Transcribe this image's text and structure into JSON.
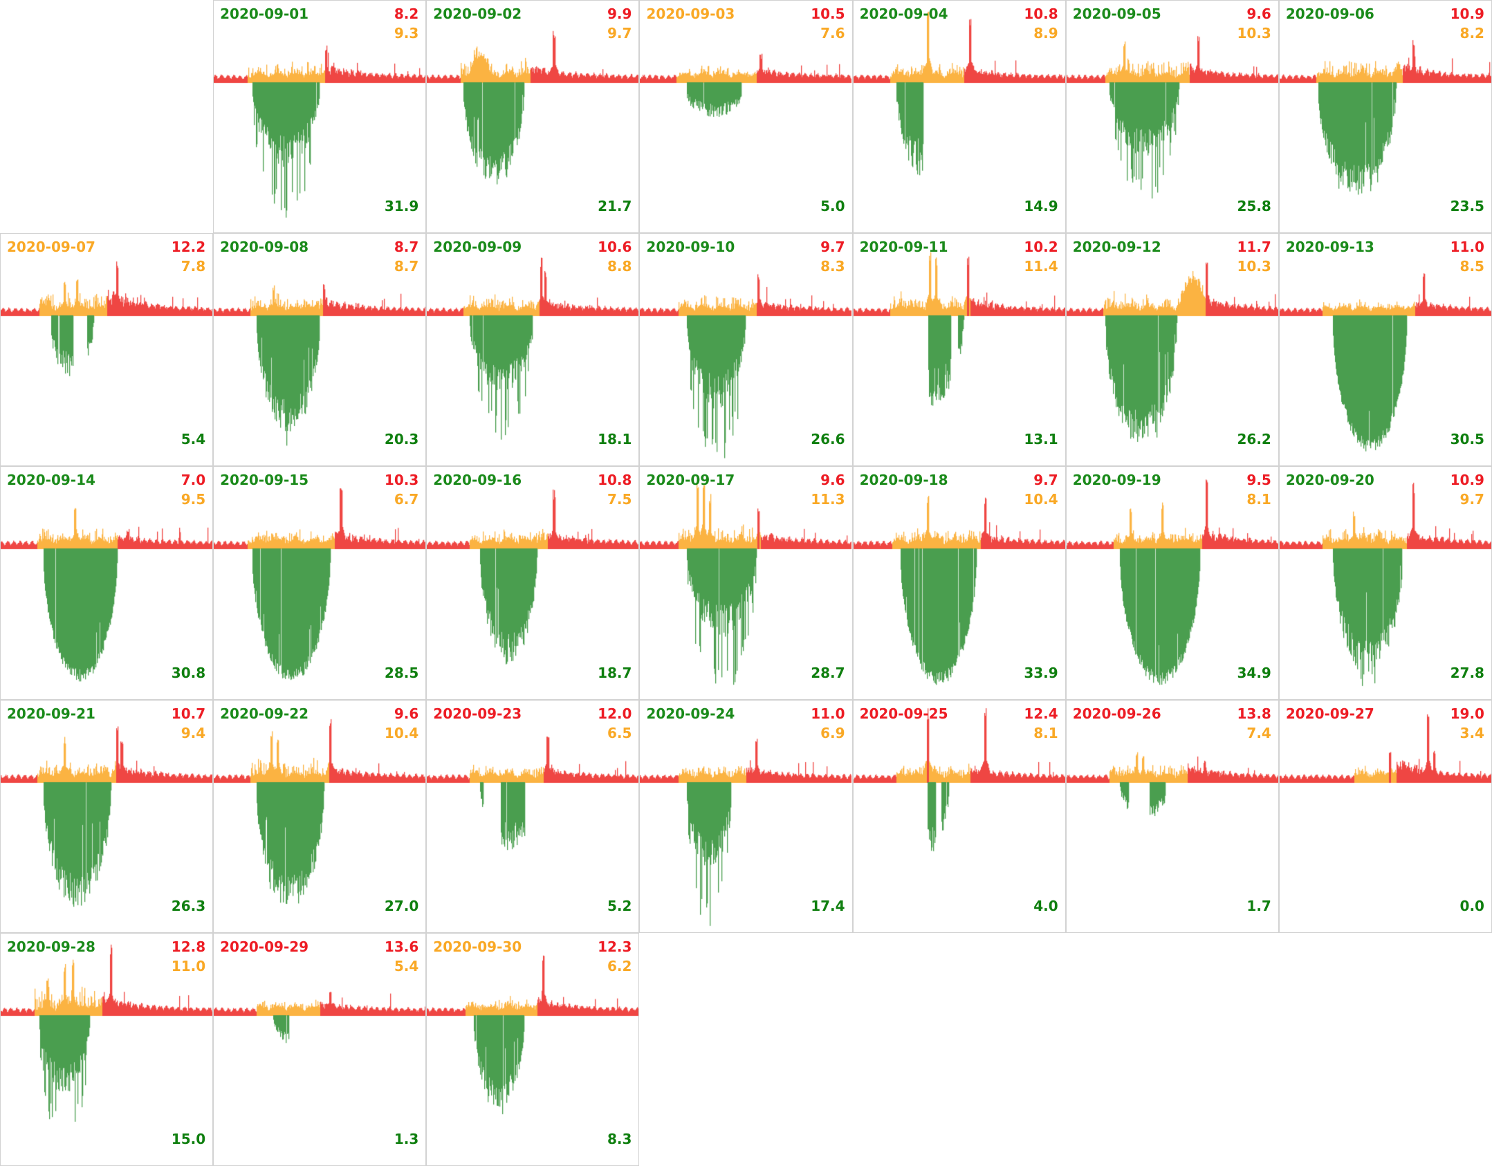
{
  "page": {
    "background": "#ffffff"
  },
  "colors": {
    "chart_red": "#ef4643",
    "chart_orange": "#fbb342",
    "chart_green": "#4a9e4f",
    "text_red": "#ed1c24",
    "text_orange": "#f9a825",
    "text_green_date": "#1a8a1a",
    "text_green_value": "#0f7f0f",
    "date_orange": "#f9a825",
    "date_red": "#ed1c24",
    "border": "#d2d2d2"
  },
  "chart_data": {
    "type": "area",
    "layout": "calendar-small-multiples",
    "month": "2020-09",
    "columns": 7,
    "rows": 5,
    "first_day_column": 2,
    "value_legend": {
      "top_right_line1_color": "red",
      "top_right_line2_color": "orange",
      "bottom_right_color": "green"
    },
    "days": [
      {
        "date": "2020-09-01",
        "date_color": "green",
        "value_red": "8.2",
        "value_orange": "9.3",
        "value_green": "31.9",
        "seed": 1,
        "shape": {
          "g": [
            0.18,
            0.5
          ],
          "d": 185,
          "gs": "spiky",
          "o": [
            0.16,
            0.53
          ],
          "n": 0.5,
          "sp": [
            [
              0.53,
              50,
              "r"
            ]
          ],
          "tail": 12
        }
      },
      {
        "date": "2020-09-02",
        "date_color": "green",
        "value_red": "9.9",
        "value_orange": "9.7",
        "value_green": "21.7",
        "seed": 2,
        "shape": {
          "g": [
            0.17,
            0.46
          ],
          "d": 150,
          "gs": "ragged",
          "o": [
            0.16,
            0.49
          ],
          "n": 0.6,
          "m": [
            0.2,
            0.3,
            35
          ],
          "sp": [
            [
              0.6,
              68,
              "r"
            ]
          ],
          "tail": 12
        }
      },
      {
        "date": "2020-09-03",
        "date_color": "orange",
        "value_red": "10.5",
        "value_orange": "7.6",
        "value_green": "5.0",
        "seed": 3,
        "shape": {
          "g": [
            0.2,
            0.5
          ],
          "d": 55,
          "gs": "patchy",
          "o": [
            0.17,
            0.55
          ],
          "n": 0.35,
          "sp": [
            [
              0.57,
              38,
              "r"
            ]
          ],
          "tail": 10
        }
      },
      {
        "date": "2020-09-04",
        "date_color": "green",
        "value_red": "10.8",
        "value_orange": "8.9",
        "value_green": "14.9",
        "seed": 4,
        "shape": {
          "g": [
            0.2,
            0.48
          ],
          "d": 150,
          "gs": "patchy",
          "o": [
            0.17,
            0.52
          ],
          "n": 0.5,
          "sp": [
            [
              0.35,
              100,
              "o"
            ],
            [
              0.55,
              88,
              "r"
            ]
          ],
          "tail": 10
        }
      },
      {
        "date": "2020-09-05",
        "date_color": "green",
        "value_red": "9.6",
        "value_orange": "10.3",
        "value_green": "25.8",
        "seed": 5,
        "shape": {
          "g": [
            0.2,
            0.53
          ],
          "d": 160,
          "gs": "spiky",
          "o": [
            0.18,
            0.58
          ],
          "n": 0.6,
          "sp": [
            [
              0.27,
              55,
              "o"
            ],
            [
              0.62,
              62,
              "r"
            ]
          ],
          "tail": 12
        }
      },
      {
        "date": "2020-09-06",
        "date_color": "green",
        "value_red": "10.9",
        "value_orange": "8.2",
        "value_green": "23.5",
        "seed": 6,
        "shape": {
          "g": [
            0.18,
            0.55
          ],
          "d": 165,
          "gs": "ragged",
          "o": [
            0.17,
            0.58
          ],
          "n": 0.55,
          "sp": [
            [
              0.63,
              58,
              "r"
            ]
          ],
          "tail": 14
        }
      },
      {
        "date": "2020-09-07",
        "date_color": "orange",
        "value_red": "12.2",
        "value_orange": "7.8",
        "value_green": "5.4",
        "seed": 7,
        "shape": {
          "g": [
            0.22,
            0.44
          ],
          "d": 95,
          "gs": "patchy",
          "o": [
            0.18,
            0.5
          ],
          "n": 0.7,
          "sp": [
            [
              0.3,
              48,
              "o"
            ],
            [
              0.36,
              52,
              "o"
            ],
            [
              0.55,
              72,
              "r"
            ]
          ],
          "tail": 22
        }
      },
      {
        "date": "2020-09-08",
        "date_color": "green",
        "value_red": "8.7",
        "value_orange": "8.7",
        "value_green": "20.3",
        "seed": 8,
        "shape": {
          "g": [
            0.2,
            0.5
          ],
          "d": 170,
          "gs": "ragged",
          "o": [
            0.17,
            0.52
          ],
          "n": 0.5,
          "sp": [
            [
              0.28,
              40,
              "o"
            ],
            [
              0.52,
              42,
              "r"
            ]
          ],
          "tail": 12
        }
      },
      {
        "date": "2020-09-09",
        "date_color": "green",
        "value_red": "10.6",
        "value_orange": "8.8",
        "value_green": "18.1",
        "seed": 9,
        "shape": {
          "g": [
            0.2,
            0.5
          ],
          "d": 170,
          "gs": "spiky",
          "o": [
            0.17,
            0.53
          ],
          "n": 0.5,
          "sp": [
            [
              0.54,
              78,
              "r"
            ],
            [
              0.56,
              60,
              "r"
            ]
          ],
          "tail": 12
        }
      },
      {
        "date": "2020-09-10",
        "date_color": "green",
        "value_red": "9.7",
        "value_orange": "8.3",
        "value_green": "26.6",
        "seed": 10,
        "shape": {
          "g": [
            0.22,
            0.5
          ],
          "d": 205,
          "gs": "spiky",
          "o": [
            0.18,
            0.55
          ],
          "n": 0.5,
          "sp": [
            [
              0.56,
              55,
              "r"
            ]
          ],
          "tail": 10
        }
      },
      {
        "date": "2020-09-11",
        "date_color": "green",
        "value_red": "10.2",
        "value_orange": "11.4",
        "value_green": "13.1",
        "seed": 11,
        "shape": {
          "g": [
            0.2,
            0.52
          ],
          "d": 140,
          "gs": "patchy",
          "o": [
            0.17,
            0.55
          ],
          "n": 0.6,
          "sp": [
            [
              0.36,
              85,
              "o"
            ],
            [
              0.39,
              78,
              "o"
            ],
            [
              0.54,
              78,
              "r"
            ]
          ],
          "tail": 12
        }
      },
      {
        "date": "2020-09-12",
        "date_color": "green",
        "value_red": "11.7",
        "value_orange": "10.3",
        "value_green": "26.2",
        "seed": 12,
        "shape": {
          "g": [
            0.18,
            0.52
          ],
          "d": 190,
          "gs": "ragged",
          "o": [
            0.17,
            0.66
          ],
          "n": 0.6,
          "m": [
            0.53,
            0.66,
            48
          ],
          "sp": [
            [
              0.66,
              78,
              "r"
            ]
          ],
          "tail": 14
        }
      },
      {
        "date": "2020-09-13",
        "date_color": "green",
        "value_red": "11.0",
        "value_orange": "8.5",
        "value_green": "30.5",
        "seed": 13,
        "shape": {
          "g": [
            0.25,
            0.6
          ],
          "d": 200,
          "gs": "solid",
          "o": [
            0.2,
            0.64
          ],
          "n": 0.3,
          "sp": [
            [
              0.68,
              58,
              "r"
            ]
          ],
          "tail": 10
        }
      },
      {
        "date": "2020-09-14",
        "date_color": "green",
        "value_red": "7.0",
        "value_orange": "9.5",
        "value_green": "30.8",
        "seed": 14,
        "shape": {
          "g": [
            0.2,
            0.55
          ],
          "d": 195,
          "gs": "solid",
          "o": [
            0.17,
            0.55
          ],
          "n": 0.5,
          "sp": [
            [
              0.35,
              58,
              "o"
            ],
            [
              0.6,
              26,
              "r"
            ]
          ],
          "tail": 8
        }
      },
      {
        "date": "2020-09-15",
        "date_color": "green",
        "value_red": "10.3",
        "value_orange": "6.7",
        "value_green": "28.5",
        "seed": 15,
        "shape": {
          "g": [
            0.18,
            0.55
          ],
          "d": 195,
          "gs": "solid",
          "o": [
            0.16,
            0.57
          ],
          "n": 0.45,
          "sp": [
            [
              0.6,
              92,
              "r"
            ]
          ],
          "tail": 12
        }
      },
      {
        "date": "2020-09-16",
        "date_color": "green",
        "value_red": "10.8",
        "value_orange": "7.5",
        "value_green": "18.7",
        "seed": 16,
        "shape": {
          "g": [
            0.25,
            0.52
          ],
          "d": 170,
          "gs": "ragged",
          "o": [
            0.2,
            0.57
          ],
          "n": 0.45,
          "sp": [
            [
              0.6,
              78,
              "r"
            ]
          ],
          "tail": 12
        }
      },
      {
        "date": "2020-09-17",
        "date_color": "green",
        "value_red": "9.6",
        "value_orange": "11.3",
        "value_green": "28.7",
        "seed": 17,
        "shape": {
          "g": [
            0.22,
            0.55
          ],
          "d": 195,
          "gs": "spiky",
          "o": [
            0.18,
            0.57
          ],
          "n": 0.6,
          "sp": [
            [
              0.27,
              88,
              "o"
            ],
            [
              0.3,
              98,
              "o"
            ],
            [
              0.33,
              72,
              "o"
            ],
            [
              0.56,
              55,
              "r"
            ]
          ],
          "tail": 12
        }
      },
      {
        "date": "2020-09-18",
        "date_color": "green",
        "value_red": "9.7",
        "value_orange": "10.4",
        "value_green": "33.9",
        "seed": 18,
        "shape": {
          "g": [
            0.22,
            0.58
          ],
          "d": 200,
          "gs": "solid",
          "o": [
            0.18,
            0.6
          ],
          "n": 0.5,
          "sp": [
            [
              0.35,
              72,
              "o"
            ],
            [
              0.62,
              70,
              "r"
            ]
          ],
          "tail": 10
        }
      },
      {
        "date": "2020-09-19",
        "date_color": "green",
        "value_red": "9.5",
        "value_orange": "8.1",
        "value_green": "34.9",
        "seed": 19,
        "shape": {
          "g": [
            0.25,
            0.63
          ],
          "d": 200,
          "gs": "solid",
          "o": [
            0.22,
            0.64
          ],
          "n": 0.45,
          "sp": [
            [
              0.3,
              55,
              "o"
            ],
            [
              0.45,
              62,
              "o"
            ],
            [
              0.66,
              92,
              "r"
            ]
          ],
          "tail": 14
        }
      },
      {
        "date": "2020-09-20",
        "date_color": "green",
        "value_red": "10.9",
        "value_orange": "9.7",
        "value_green": "27.8",
        "seed": 20,
        "shape": {
          "g": [
            0.25,
            0.58
          ],
          "d": 185,
          "gs": "ragged",
          "o": [
            0.2,
            0.6
          ],
          "n": 0.5,
          "sp": [
            [
              0.35,
              50,
              "o"
            ],
            [
              0.63,
              88,
              "r"
            ]
          ],
          "tail": 12
        }
      },
      {
        "date": "2020-09-21",
        "date_color": "green",
        "value_red": "10.7",
        "value_orange": "9.4",
        "value_green": "26.3",
        "seed": 21,
        "shape": {
          "g": [
            0.2,
            0.52
          ],
          "d": 185,
          "gs": "ragged",
          "o": [
            0.17,
            0.55
          ],
          "n": 0.55,
          "sp": [
            [
              0.3,
              62,
              "o"
            ],
            [
              0.55,
              78,
              "r"
            ],
            [
              0.57,
              60,
              "r"
            ]
          ],
          "tail": 12
        }
      },
      {
        "date": "2020-09-22",
        "date_color": "green",
        "value_red": "9.6",
        "value_orange": "10.4",
        "value_green": "27.0",
        "seed": 22,
        "shape": {
          "g": [
            0.2,
            0.52
          ],
          "d": 185,
          "gs": "ragged",
          "o": [
            0.17,
            0.55
          ],
          "n": 0.6,
          "sp": [
            [
              0.27,
              68,
              "o"
            ],
            [
              0.3,
              58,
              "o"
            ],
            [
              0.55,
              88,
              "r"
            ]
          ],
          "tail": 10
        }
      },
      {
        "date": "2020-09-23",
        "date_color": "red",
        "value_red": "12.0",
        "value_orange": "6.5",
        "value_green": "5.2",
        "seed": 23,
        "shape": {
          "g": [
            0.25,
            0.52
          ],
          "d": 105,
          "gs": "patchy",
          "o": [
            0.2,
            0.55
          ],
          "n": 0.4,
          "sp": [
            [
              0.57,
              72,
              "r"
            ]
          ],
          "tail": 10
        }
      },
      {
        "date": "2020-09-24",
        "date_color": "green",
        "value_red": "11.0",
        "value_orange": "6.9",
        "value_green": "17.4",
        "seed": 24,
        "shape": {
          "g": [
            0.22,
            0.43
          ],
          "d": 195,
          "gs": "spiky",
          "o": [
            0.18,
            0.5
          ],
          "n": 0.4,
          "sp": [
            [
              0.55,
              62,
              "r"
            ]
          ],
          "tail": 10
        }
      },
      {
        "date": "2020-09-25",
        "date_color": "red",
        "value_red": "12.4",
        "value_orange": "8.1",
        "value_green": "4.0",
        "seed": 25,
        "shape": {
          "g": [
            0.25,
            0.45
          ],
          "d": 115,
          "gs": "patchy",
          "o": [
            0.2,
            0.55
          ],
          "n": 0.45,
          "sp": [
            [
              0.35,
              98,
              "r"
            ],
            [
              0.62,
              98,
              "r"
            ]
          ],
          "tail": 10
        }
      },
      {
        "date": "2020-09-26",
        "date_color": "red",
        "value_red": "13.8",
        "value_orange": "7.4",
        "value_green": "1.7",
        "seed": 26,
        "shape": {
          "g": [
            0.25,
            0.48
          ],
          "d": 60,
          "gs": "patchy",
          "o": [
            0.2,
            0.57
          ],
          "n": 0.4,
          "sp": [
            [
              0.33,
              42,
              "o"
            ],
            [
              0.36,
              38,
              "o"
            ],
            [
              0.65,
              30,
              "r"
            ]
          ],
          "tail": 14
        }
      },
      {
        "date": "2020-09-27",
        "date_color": "red",
        "value_red": "19.0",
        "value_orange": "3.4",
        "value_green": "0.0",
        "seed": 27,
        "shape": {
          "g": null,
          "d": 0,
          "gs": "none",
          "o": [
            0.35,
            0.55
          ],
          "n": 0.35,
          "sp": [
            [
              0.52,
              40,
              "r"
            ],
            [
              0.7,
              95,
              "r"
            ],
            [
              0.73,
              45,
              "r"
            ]
          ],
          "tail": 18
        }
      },
      {
        "date": "2020-09-28",
        "date_color": "green",
        "value_red": "12.8",
        "value_orange": "11.0",
        "value_green": "15.0",
        "seed": 28,
        "shape": {
          "g": [
            0.18,
            0.42
          ],
          "d": 175,
          "gs": "spiky",
          "o": [
            0.16,
            0.48
          ],
          "n": 0.8,
          "sp": [
            [
              0.22,
              55,
              "o"
            ],
            [
              0.3,
              68,
              "o"
            ],
            [
              0.34,
              75,
              "o"
            ],
            [
              0.52,
              95,
              "r"
            ]
          ],
          "tail": 16
        }
      },
      {
        "date": "2020-09-29",
        "date_color": "red",
        "value_red": "13.6",
        "value_orange": "5.4",
        "value_green": "1.3",
        "seed": 29,
        "shape": {
          "g": [
            0.28,
            0.45
          ],
          "d": 45,
          "gs": "patchy",
          "o": [
            0.2,
            0.5
          ],
          "n": 0.35,
          "sp": [
            [
              0.55,
              35,
              "r"
            ]
          ],
          "tail": 8
        }
      },
      {
        "date": "2020-09-30",
        "date_color": "orange",
        "value_red": "12.3",
        "value_orange": "6.2",
        "value_green": "8.3",
        "seed": 30,
        "shape": {
          "g": [
            0.22,
            0.46
          ],
          "d": 135,
          "gs": "ragged",
          "o": [
            0.18,
            0.52
          ],
          "n": 0.4,
          "sp": [
            [
              0.55,
              82,
              "r"
            ]
          ],
          "tail": 12
        }
      }
    ]
  }
}
